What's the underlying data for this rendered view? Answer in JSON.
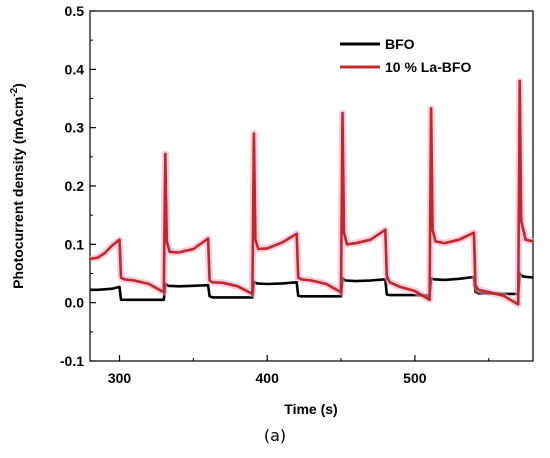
{
  "chart_data": {
    "type": "line",
    "xlabel": "Time (s)",
    "ylabel": "Photocurrent density (mAcm",
    "ylabel_sup": "-2",
    "ylabel_close": ")",
    "xlim": [
      280,
      580
    ],
    "ylim": [
      -0.1,
      0.5
    ],
    "x_ticks": [
      300,
      400,
      500
    ],
    "y_ticks": [
      -0.1,
      0.0,
      0.1,
      0.2,
      0.3,
      0.4,
      0.5
    ],
    "y_tick_labels": [
      "-0.1",
      "0.0",
      "0.1",
      "0.2",
      "0.3",
      "0.4",
      "0.5"
    ],
    "grid": false,
    "legend_position": "top-right",
    "series": [
      {
        "name": "BFO",
        "color": "#000000",
        "points": [
          [
            280,
            0.022
          ],
          [
            285,
            0.022
          ],
          [
            290,
            0.023
          ],
          [
            295,
            0.024
          ],
          [
            300,
            0.027
          ],
          [
            301,
            0.005
          ],
          [
            305,
            0.005
          ],
          [
            315,
            0.005
          ],
          [
            325,
            0.005
          ],
          [
            330,
            0.005
          ],
          [
            331,
            0.032
          ],
          [
            333,
            0.029
          ],
          [
            340,
            0.028
          ],
          [
            350,
            0.029
          ],
          [
            360,
            0.03
          ],
          [
            361,
            0.011
          ],
          [
            363,
            0.009
          ],
          [
            370,
            0.009
          ],
          [
            380,
            0.009
          ],
          [
            390,
            0.009
          ],
          [
            391,
            0.036
          ],
          [
            393,
            0.033
          ],
          [
            400,
            0.032
          ],
          [
            410,
            0.033
          ],
          [
            420,
            0.035
          ],
          [
            421,
            0.012
          ],
          [
            423,
            0.011
          ],
          [
            430,
            0.011
          ],
          [
            440,
            0.011
          ],
          [
            450,
            0.011
          ],
          [
            451,
            0.042
          ],
          [
            453,
            0.038
          ],
          [
            460,
            0.037
          ],
          [
            470,
            0.038
          ],
          [
            480,
            0.04
          ],
          [
            481,
            0.014
          ],
          [
            483,
            0.013
          ],
          [
            490,
            0.013
          ],
          [
            500,
            0.013
          ],
          [
            510,
            0.012
          ],
          [
            511,
            0.042
          ],
          [
            513,
            0.04
          ],
          [
            520,
            0.039
          ],
          [
            530,
            0.041
          ],
          [
            540,
            0.044
          ],
          [
            541,
            0.019
          ],
          [
            543,
            0.016
          ],
          [
            550,
            0.016
          ],
          [
            560,
            0.015
          ],
          [
            570,
            0.015
          ],
          [
            571,
            0.05
          ],
          [
            573,
            0.045
          ],
          [
            580,
            0.043
          ]
        ]
      },
      {
        "name": "10 % La-BFO",
        "color": "#c0282b",
        "points": [
          [
            280,
            0.075
          ],
          [
            285,
            0.077
          ],
          [
            290,
            0.085
          ],
          [
            295,
            0.098
          ],
          [
            300,
            0.108
          ],
          [
            301,
            0.043
          ],
          [
            303,
            0.04
          ],
          [
            310,
            0.038
          ],
          [
            320,
            0.032
          ],
          [
            330,
            0.018
          ],
          [
            331,
            0.255
          ],
          [
            332,
            0.105
          ],
          [
            334,
            0.087
          ],
          [
            340,
            0.086
          ],
          [
            350,
            0.092
          ],
          [
            360,
            0.11
          ],
          [
            361,
            0.038
          ],
          [
            363,
            0.035
          ],
          [
            370,
            0.034
          ],
          [
            380,
            0.028
          ],
          [
            390,
            0.015
          ],
          [
            391,
            0.29
          ],
          [
            392,
            0.108
          ],
          [
            394,
            0.092
          ],
          [
            400,
            0.093
          ],
          [
            410,
            0.103
          ],
          [
            420,
            0.118
          ],
          [
            421,
            0.043
          ],
          [
            423,
            0.04
          ],
          [
            430,
            0.038
          ],
          [
            440,
            0.032
          ],
          [
            450,
            0.018
          ],
          [
            451,
            0.325
          ],
          [
            452,
            0.12
          ],
          [
            454,
            0.1
          ],
          [
            460,
            0.102
          ],
          [
            470,
            0.108
          ],
          [
            480,
            0.125
          ],
          [
            481,
            0.045
          ],
          [
            483,
            0.035
          ],
          [
            490,
            0.027
          ],
          [
            500,
            0.02
          ],
          [
            510,
            0.005
          ],
          [
            511,
            0.333
          ],
          [
            512,
            0.125
          ],
          [
            514,
            0.105
          ],
          [
            520,
            0.102
          ],
          [
            530,
            0.108
          ],
          [
            540,
            0.12
          ],
          [
            541,
            0.03
          ],
          [
            543,
            0.022
          ],
          [
            550,
            0.018
          ],
          [
            560,
            0.012
          ],
          [
            570,
            -0.003
          ],
          [
            571,
            0.38
          ],
          [
            572,
            0.14
          ],
          [
            575,
            0.108
          ],
          [
            580,
            0.105
          ]
        ]
      }
    ]
  },
  "caption": "(a)"
}
